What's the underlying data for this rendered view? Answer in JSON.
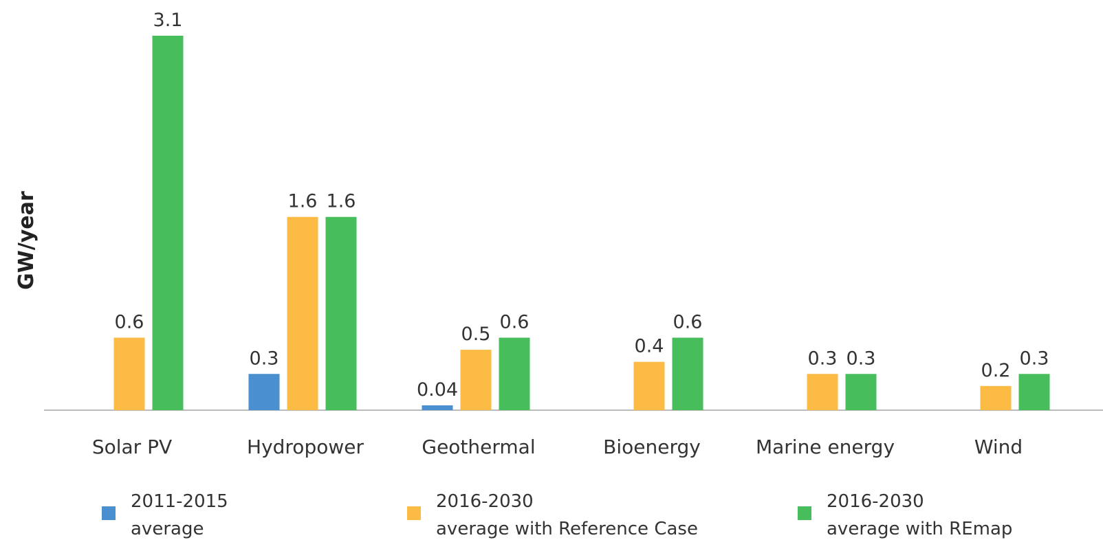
{
  "chart_data": {
    "type": "bar",
    "y_label": "GW/year",
    "categories": [
      "Solar PV",
      "Hydropower",
      "Geothermal",
      "Bioenergy",
      "Marine energy",
      "Wind"
    ],
    "series": [
      {
        "name": "2011-2015 average",
        "color": "#4a8fd0",
        "values": [
          null,
          0.3,
          0.04,
          null,
          null,
          null
        ]
      },
      {
        "name": "2016-2030 average with Reference Case",
        "color": "#fbbb45",
        "values": [
          0.6,
          1.6,
          0.5,
          0.4,
          0.3,
          0.2
        ]
      },
      {
        "name": "2016-2030 average with REmap",
        "color": "#48bd5c",
        "values": [
          3.1,
          1.6,
          0.6,
          0.6,
          0.3,
          0.3
        ]
      }
    ],
    "ylim": [
      0,
      3.1
    ]
  }
}
